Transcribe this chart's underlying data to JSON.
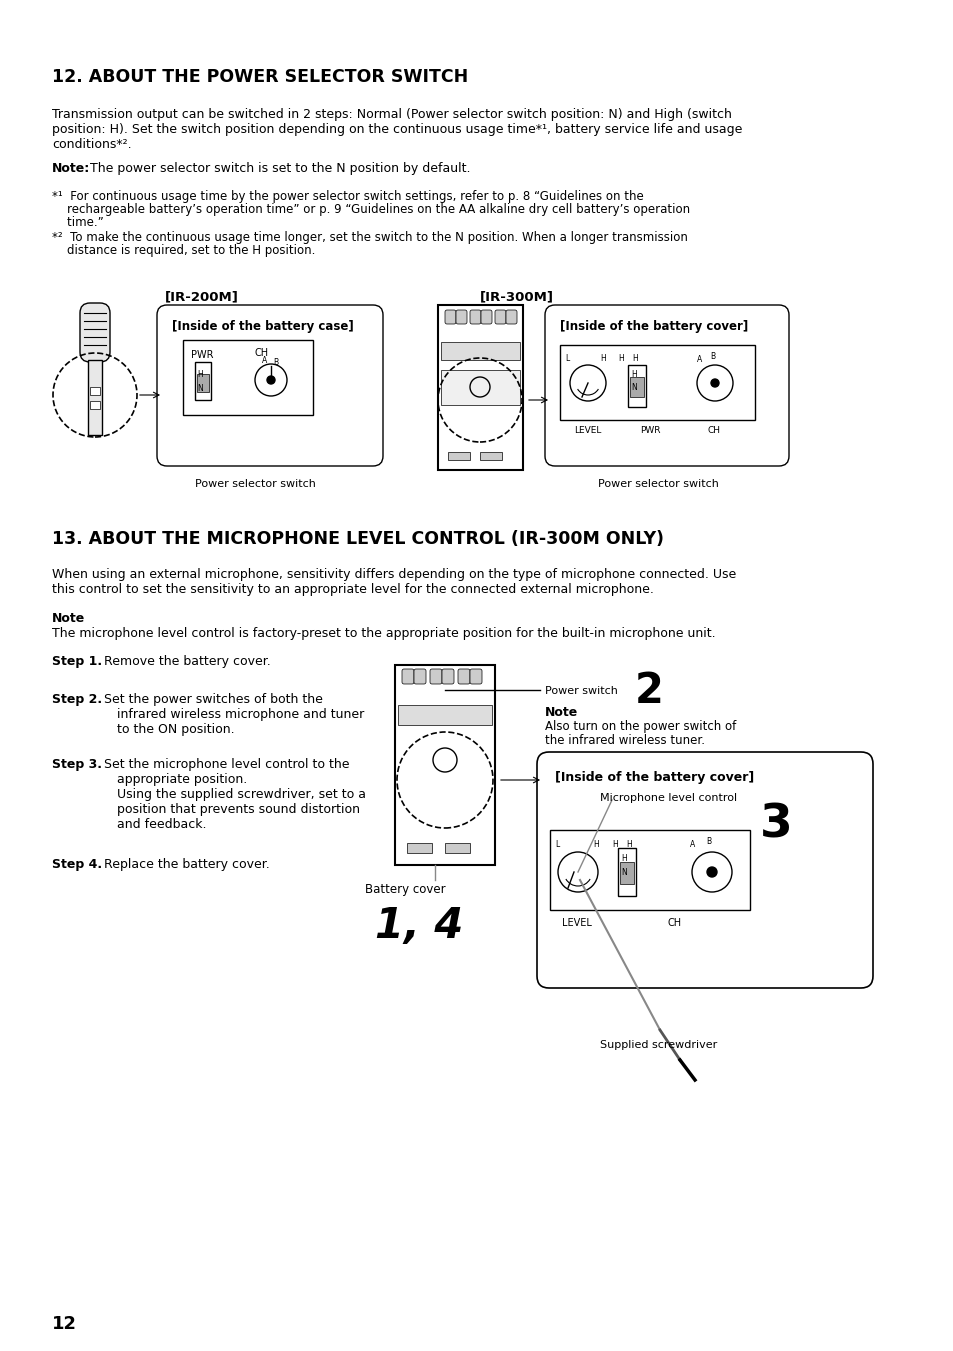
{
  "page_number": "12",
  "bg_color": "#ffffff",
  "section12_title": "12. ABOUT THE POWER SELECTOR SWITCH",
  "body12_line1": "Transmission output can be switched in 2 steps: Normal (Power selector switch position: N) and High (switch",
  "body12_line2": "position: H). Set the switch position depending on the continuous usage time*¹, battery service life and usage",
  "body12_line3": "conditions*².",
  "note12": "The power selector switch is set to the N position by default.",
  "fn1_l1": "*¹  For continuous usage time by the power selector switch settings, refer to p. 8 “Guidelines on the",
  "fn1_l2": "    rechargeable battery’s operation time” or p. 9 “Guidelines on the AA alkaline dry cell battery’s operation",
  "fn1_l3": "    time.”",
  "fn2_l1": "*²  To make the continuous usage time longer, set the switch to the N position. When a longer transmission",
  "fn2_l2": "    distance is required, set to the H position.",
  "label_ir200m": "[IR-200M]",
  "label_ir300m": "[IR-300M]",
  "label_battery_case": "[Inside of the battery case]",
  "label_battery_cover1": "[Inside of the battery cover]",
  "label_pwr_switch": "Power selector switch",
  "section13_title": "13. ABOUT THE MICROPHONE LEVEL CONTROL (IR-300M ONLY)",
  "body13_line1": "When using an external microphone, sensitivity differs depending on the type of microphone connected. Use",
  "body13_line2": "this control to set the sensitivity to an appropriate level for the connected external microphone.",
  "note13_title": "Note",
  "note13_body": "The microphone level control is factory-preset to the appropriate position for the built-in microphone unit.",
  "step1_bold": "Step 1.",
  "step1_rest": " Remove the battery cover.",
  "step2_bold": "Step 2.",
  "step2_l1": " Set the power switches of both the",
  "step2_l2": "infrared wireless microphone and tuner",
  "step2_l3": "to the ON position.",
  "step3_bold": "Step 3.",
  "step3_l1": " Set the microphone level control to the",
  "step3_l2": "appropriate position.",
  "step3_l3": "Using the supplied screwdriver, set to a",
  "step3_l4": "position that prevents sound distortion",
  "step3_l5": "and feedback.",
  "step4_bold": "Step 4.",
  "step4_rest": " Replace the battery cover.",
  "lbl_power_switch": "Power switch",
  "lbl_2": "2",
  "note2_title": "Note",
  "note2_l1": "Also turn on the power switch of",
  "note2_l2": "the infrared wireless tuner.",
  "lbl_battery_cover2": "[Inside of the battery cover]",
  "lbl_mic_control": "Microphone level control",
  "lbl_3": "3",
  "lbl_battery_cover_text": "Battery cover",
  "lbl_14": "1, 4",
  "lbl_screwdriver": "Supplied screwdriver"
}
